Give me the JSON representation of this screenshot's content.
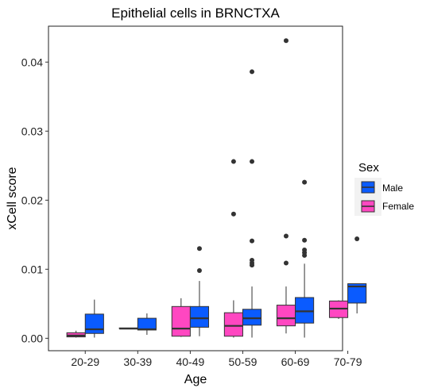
{
  "chart_data": {
    "type": "boxplot",
    "title": "Epithelial cells in BRNCTXA",
    "xlabel": "Age",
    "ylabel": "xCell score",
    "categories": [
      "20-29",
      "30-39",
      "40-49",
      "50-59",
      "60-69",
      "70-79"
    ],
    "ylim": [
      -0.0018,
      0.0452
    ],
    "yticks": [
      "0.00",
      "0.01",
      "0.02",
      "0.03",
      "0.04"
    ],
    "grid": false,
    "legend": {
      "title": "Sex",
      "position": "right",
      "entries": [
        "Male",
        "Female"
      ]
    },
    "series": [
      {
        "name": "Female",
        "color": "#FF47C1",
        "boxes": [
          {
            "category": "20-29",
            "whisker_low": 0.0001,
            "q1": 0.0002,
            "median": 0.0004,
            "q3": 0.0008,
            "whisker_high": 0.0011,
            "outliers": []
          },
          {
            "category": "30-39",
            "whisker_low": 0.0014,
            "q1": 0.0014,
            "median": 0.0014,
            "q3": 0.0015,
            "whisker_high": 0.0015,
            "outliers": []
          },
          {
            "category": "40-49",
            "whisker_low": 0.0002,
            "q1": 0.0003,
            "median": 0.0014,
            "q3": 0.0046,
            "whisker_high": 0.0058,
            "outliers": []
          },
          {
            "category": "50-59",
            "whisker_low": 0.0001,
            "q1": 0.0003,
            "median": 0.0018,
            "q3": 0.0037,
            "whisker_high": 0.0055,
            "outliers": [
              0.018,
              0.0256
            ]
          },
          {
            "category": "60-69",
            "whisker_low": 0.0007,
            "q1": 0.0018,
            "median": 0.0029,
            "q3": 0.0048,
            "whisker_high": 0.0075,
            "outliers": [
              0.0109,
              0.0148,
              0.0431
            ]
          },
          {
            "category": "70-79",
            "whisker_low": 0.0028,
            "q1": 0.003,
            "median": 0.0043,
            "q3": 0.0054,
            "whisker_high": 0.0055,
            "outliers": []
          }
        ]
      },
      {
        "name": "Male",
        "color": "#0A5BFF",
        "boxes": [
          {
            "category": "20-29",
            "whisker_low": 0.0001,
            "q1": 0.0007,
            "median": 0.0013,
            "q3": 0.0035,
            "whisker_high": 0.0056,
            "outliers": []
          },
          {
            "category": "30-39",
            "whisker_low": 0.0005,
            "q1": 0.0012,
            "median": 0.0013,
            "q3": 0.0029,
            "whisker_high": 0.0036,
            "outliers": []
          },
          {
            "category": "40-49",
            "whisker_low": 0.0003,
            "q1": 0.0016,
            "median": 0.0029,
            "q3": 0.0046,
            "whisker_high": 0.0083,
            "outliers": [
              0.0098,
              0.013
            ]
          },
          {
            "category": "50-59",
            "whisker_low": 0.0001,
            "q1": 0.0019,
            "median": 0.0029,
            "q3": 0.0042,
            "whisker_high": 0.0075,
            "outliers": [
              0.0106,
              0.0109,
              0.0113,
              0.0141,
              0.0256,
              0.0386
            ]
          },
          {
            "category": "60-69",
            "whisker_low": 0.0001,
            "q1": 0.0022,
            "median": 0.0039,
            "q3": 0.0059,
            "whisker_high": 0.0108,
            "outliers": [
              0.012,
              0.0124,
              0.0128,
              0.0142,
              0.0226
            ]
          },
          {
            "category": "70-79",
            "whisker_low": 0.0036,
            "q1": 0.0051,
            "median": 0.0075,
            "q3": 0.0079,
            "whisker_high": 0.0079,
            "outliers": [
              0.0144
            ]
          }
        ]
      }
    ]
  }
}
